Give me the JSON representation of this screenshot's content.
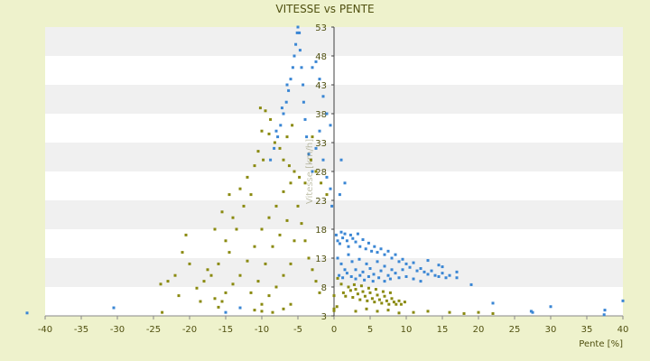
{
  "chart_data": {
    "type": "scatter",
    "title": "VITESSE vs PENTE",
    "xlabel": "Pente [%]",
    "ylabel": "Vitesse [km/h]",
    "xlim": [
      -40,
      40
    ],
    "ylim": [
      3,
      53
    ],
    "x_ticks": [
      -40,
      -35,
      -30,
      -25,
      -20,
      -15,
      -10,
      -5,
      0,
      5,
      10,
      15,
      20,
      25,
      30,
      35,
      40
    ],
    "y_ticks": [
      3,
      8,
      13,
      18,
      23,
      28,
      33,
      38,
      43,
      48,
      53
    ],
    "grid": "horizontal alternating bands",
    "legend": "none",
    "colors": {
      "background": "#eef2cc",
      "band_light": "#ffffff",
      "band_dark": "#f0f0f0",
      "series_blue": "#3a86d4",
      "series_olive": "#8a8a10",
      "axis_text": "#505010"
    },
    "series": [
      {
        "color": "#3a86d4",
        "points": [
          [
            -5.0,
            53.5
          ],
          [
            -5.1,
            52.0
          ],
          [
            -5.3,
            50.0
          ],
          [
            -5.5,
            48.0
          ],
          [
            -5.7,
            46.0
          ],
          [
            -6.0,
            44.0
          ],
          [
            -6.3,
            42.0
          ],
          [
            -6.6,
            40.0
          ],
          [
            -7.0,
            38.0
          ],
          [
            -7.4,
            36.0
          ],
          [
            -7.8,
            34.0
          ],
          [
            -8.3,
            32.0
          ],
          [
            -8.8,
            30.0
          ],
          [
            -4.8,
            52.0
          ],
          [
            -4.7,
            49.0
          ],
          [
            -4.5,
            46.0
          ],
          [
            -4.3,
            43.0
          ],
          [
            -4.2,
            40.0
          ],
          [
            -4.0,
            37.0
          ],
          [
            -3.8,
            34.0
          ],
          [
            -3.5,
            31.0
          ],
          [
            -3.0,
            46.0
          ],
          [
            -2.5,
            47.0
          ],
          [
            -2.0,
            44.0
          ],
          [
            -1.5,
            41.0
          ],
          [
            -1.0,
            38.0
          ],
          [
            -0.5,
            36.0
          ],
          [
            -2.0,
            35.0
          ],
          [
            -1.5,
            30.0
          ],
          [
            -1.0,
            27.0
          ],
          [
            -0.5,
            25.0
          ],
          [
            -3.0,
            28.0
          ],
          [
            -2.5,
            32.0
          ],
          [
            -6.5,
            43.0
          ],
          [
            -7.2,
            39.0
          ],
          [
            -8.0,
            35.0
          ],
          [
            1.5,
            26.0
          ],
          [
            1.0,
            30.0
          ],
          [
            0.8,
            24.0
          ],
          [
            -0.3,
            22.0
          ],
          [
            0.3,
            17.0
          ],
          [
            0.5,
            16.0
          ],
          [
            0.8,
            15.5
          ],
          [
            1.0,
            17.5
          ],
          [
            1.2,
            16.5
          ],
          [
            1.5,
            17.2
          ],
          [
            1.8,
            16.0
          ],
          [
            2.0,
            15.0
          ],
          [
            2.3,
            17.0
          ],
          [
            2.6,
            16.4
          ],
          [
            3.0,
            15.8
          ],
          [
            3.3,
            17.2
          ],
          [
            3.6,
            15.0
          ],
          [
            4.0,
            16.2
          ],
          [
            4.4,
            14.6
          ],
          [
            4.8,
            15.6
          ],
          [
            5.2,
            14.2
          ],
          [
            5.6,
            15.0
          ],
          [
            6.0,
            14.0
          ],
          [
            6.5,
            14.6
          ],
          [
            7.0,
            13.6
          ],
          [
            7.5,
            14.2
          ],
          [
            8.0,
            13.0
          ],
          [
            8.5,
            13.6
          ],
          [
            9.0,
            12.4
          ],
          [
            9.5,
            12.8
          ],
          [
            10.0,
            12.0
          ],
          [
            10.5,
            11.4
          ],
          [
            11.0,
            12.2
          ],
          [
            11.5,
            10.8
          ],
          [
            12.0,
            11.2
          ],
          [
            12.5,
            10.6
          ],
          [
            13.0,
            10.2
          ],
          [
            13.5,
            10.8
          ],
          [
            14.0,
            10.0
          ],
          [
            14.5,
            9.8
          ],
          [
            15.0,
            10.4
          ],
          [
            15.5,
            9.6
          ],
          [
            0.5,
            13.0
          ],
          [
            1.0,
            12.0
          ],
          [
            1.5,
            11.0
          ],
          [
            2.0,
            13.6
          ],
          [
            2.5,
            12.4
          ],
          [
            3.0,
            11.0
          ],
          [
            3.5,
            12.8
          ],
          [
            4.0,
            10.6
          ],
          [
            4.5,
            12.0
          ],
          [
            5.0,
            11.2
          ],
          [
            5.5,
            10.2
          ],
          [
            6.0,
            12.4
          ],
          [
            6.5,
            10.8
          ],
          [
            7.0,
            11.6
          ],
          [
            7.5,
            10.0
          ],
          [
            8.0,
            11.0
          ],
          [
            8.5,
            10.4
          ],
          [
            9.0,
            9.6
          ],
          [
            9.5,
            11.0
          ],
          [
            10.0,
            9.8
          ],
          [
            11.0,
            9.4
          ],
          [
            12.0,
            9.0
          ],
          [
            0.7,
            10.0
          ],
          [
            1.2,
            9.6
          ],
          [
            1.8,
            10.4
          ],
          [
            2.4,
            9.8
          ],
          [
            3.0,
            9.4
          ],
          [
            3.6,
            10.0
          ],
          [
            4.2,
            9.2
          ],
          [
            4.8,
            9.8
          ],
          [
            5.4,
            9.0
          ],
          [
            6.2,
            9.6
          ],
          [
            7.0,
            9.0
          ],
          [
            7.8,
            9.4
          ],
          [
            13.0,
            12.6
          ],
          [
            14.5,
            11.8
          ],
          [
            15.0,
            11.5
          ],
          [
            16.0,
            10.0
          ],
          [
            17.0,
            9.6
          ],
          [
            17.0,
            10.6
          ],
          [
            19.0,
            8.4
          ],
          [
            22.0,
            5.2
          ],
          [
            27.5,
            3.6
          ],
          [
            30.0,
            4.6
          ],
          [
            27.3,
            3.8
          ],
          [
            37.5,
            4.0
          ],
          [
            37.4,
            3.2
          ],
          [
            40.0,
            5.6
          ],
          [
            -30.5,
            4.4
          ],
          [
            -42.5,
            3.5
          ],
          [
            -13.0,
            4.4
          ],
          [
            -15.0,
            3.6
          ]
        ]
      },
      {
        "color": "#8a8a10",
        "points": [
          [
            -10.2,
            39.0
          ],
          [
            -9.5,
            38.5
          ],
          [
            -8.8,
            37.0
          ],
          [
            -10.0,
            35.0
          ],
          [
            -9.0,
            34.5
          ],
          [
            -8.2,
            33.0
          ],
          [
            -7.5,
            32.0
          ],
          [
            -10.5,
            31.5
          ],
          [
            -9.8,
            30.0
          ],
          [
            -11.0,
            29.0
          ],
          [
            -7.0,
            30.0
          ],
          [
            -6.2,
            29.0
          ],
          [
            -5.5,
            28.0
          ],
          [
            -4.8,
            27.0
          ],
          [
            -4.0,
            26.0
          ],
          [
            -3.2,
            30.0
          ],
          [
            -2.5,
            28.0
          ],
          [
            -1.8,
            26.0
          ],
          [
            -1.0,
            24.0
          ],
          [
            -3.0,
            34.0
          ],
          [
            -6.5,
            34.0
          ],
          [
            -5.8,
            36.0
          ],
          [
            -12.0,
            27.0
          ],
          [
            -11.5,
            24.0
          ],
          [
            -13.0,
            25.0
          ],
          [
            -12.5,
            22.0
          ],
          [
            -14.0,
            20.0
          ],
          [
            -13.5,
            18.0
          ],
          [
            -15.0,
            16.0
          ],
          [
            -14.5,
            14.0
          ],
          [
            -16.0,
            12.0
          ],
          [
            -17.0,
            10.0
          ],
          [
            -18.0,
            9.0
          ],
          [
            -19.0,
            7.8
          ],
          [
            -20.0,
            12.0
          ],
          [
            -21.0,
            14.0
          ],
          [
            -20.5,
            17.0
          ],
          [
            -22.0,
            10.0
          ],
          [
            -23.0,
            9.0
          ],
          [
            -24.0,
            8.5
          ],
          [
            -16.5,
            6.0
          ],
          [
            -16.0,
            4.5
          ],
          [
            -15.5,
            5.5
          ],
          [
            -15.0,
            7.0
          ],
          [
            -14.0,
            8.5
          ],
          [
            -13.0,
            10.0
          ],
          [
            -12.0,
            12.5
          ],
          [
            -11.0,
            15.0
          ],
          [
            -10.0,
            18.0
          ],
          [
            -9.0,
            20.0
          ],
          [
            -8.0,
            22.0
          ],
          [
            -7.0,
            24.5
          ],
          [
            -6.0,
            26.0
          ],
          [
            -5.0,
            22.0
          ],
          [
            -4.5,
            19.0
          ],
          [
            -4.0,
            16.0
          ],
          [
            -3.5,
            13.0
          ],
          [
            -3.0,
            11.0
          ],
          [
            -2.5,
            9.0
          ],
          [
            -2.0,
            7.0
          ],
          [
            -8.5,
            15.0
          ],
          [
            -9.5,
            12.0
          ],
          [
            -10.5,
            9.0
          ],
          [
            -11.5,
            7.0
          ],
          [
            -7.5,
            17.0
          ],
          [
            -6.5,
            19.5
          ],
          [
            -5.5,
            16.0
          ],
          [
            -6.0,
            12.0
          ],
          [
            -7.0,
            10.0
          ],
          [
            -8.0,
            8.0
          ],
          [
            -9.0,
            6.5
          ],
          [
            -10.0,
            5.0
          ],
          [
            -11.0,
            4.0
          ],
          [
            -7.0,
            4.2
          ],
          [
            -8.5,
            3.6
          ],
          [
            -10.0,
            3.8
          ],
          [
            -6.0,
            5.0
          ],
          [
            -23.8,
            3.6
          ],
          [
            -21.5,
            6.5
          ],
          [
            -18.5,
            5.5
          ],
          [
            -17.5,
            11.0
          ],
          [
            -16.5,
            18.0
          ],
          [
            -15.5,
            21.0
          ],
          [
            -14.5,
            24.0
          ],
          [
            1.0,
            8.5
          ],
          [
            1.3,
            7.0
          ],
          [
            1.6,
            6.4
          ],
          [
            2.0,
            8.0
          ],
          [
            2.3,
            7.4
          ],
          [
            2.6,
            6.2
          ],
          [
            3.0,
            7.6
          ],
          [
            3.3,
            6.8
          ],
          [
            3.6,
            5.8
          ],
          [
            4.0,
            7.2
          ],
          [
            4.3,
            6.4
          ],
          [
            4.6,
            5.6
          ],
          [
            5.0,
            7.0
          ],
          [
            5.3,
            6.0
          ],
          [
            5.6,
            5.4
          ],
          [
            6.0,
            6.6
          ],
          [
            6.3,
            5.8
          ],
          [
            6.6,
            5.2
          ],
          [
            7.0,
            6.4
          ],
          [
            7.3,
            5.6
          ],
          [
            7.6,
            5.0
          ],
          [
            8.0,
            6.0
          ],
          [
            8.3,
            5.4
          ],
          [
            8.6,
            5.0
          ],
          [
            9.0,
            5.6
          ],
          [
            9.3,
            5.0
          ],
          [
            2.8,
            8.4
          ],
          [
            3.8,
            8.2
          ],
          [
            4.8,
            7.8
          ],
          [
            5.8,
            7.6
          ],
          [
            6.8,
            7.2
          ],
          [
            7.8,
            7.0
          ],
          [
            9.8,
            5.4
          ],
          [
            0.4,
            4.6
          ],
          [
            0.0,
            3.9
          ],
          [
            0.0,
            4.2
          ],
          [
            0.0,
            6.5
          ],
          [
            0.5,
            9.5
          ],
          [
            3.0,
            3.8
          ],
          [
            4.5,
            4.2
          ],
          [
            6.0,
            3.8
          ],
          [
            7.5,
            4.0
          ],
          [
            9.0,
            3.5
          ],
          [
            11.0,
            3.6
          ],
          [
            13.0,
            3.8
          ],
          [
            16.0,
            3.6
          ],
          [
            18.0,
            3.4
          ],
          [
            20.0,
            3.6
          ],
          [
            22.0,
            3.4
          ]
        ]
      }
    ]
  }
}
